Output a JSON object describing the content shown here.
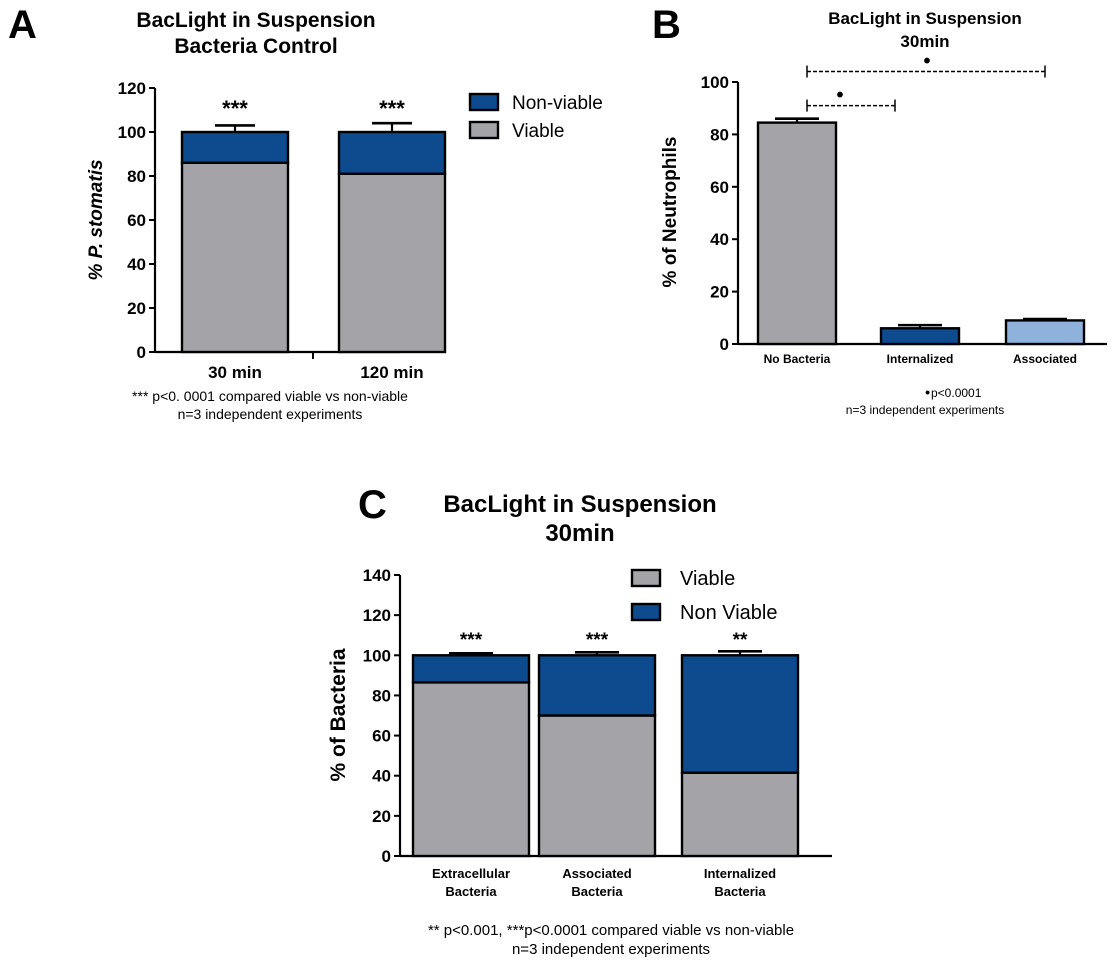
{
  "colors": {
    "viable": "#a4a3a8",
    "non_viable": "#0d4a8e",
    "internalized": "#0d4a8e",
    "associated": "#8fb2dd",
    "axis": "#000000"
  },
  "chart_data": [
    {
      "id": "A",
      "type": "bar",
      "stacked": true,
      "panel_label": "A",
      "title": [
        "BacLight in Suspension",
        "Bacteria Control"
      ],
      "ylabel": "% P. stomatis",
      "xlabel": "",
      "ylim": [
        0,
        120
      ],
      "yticks": [
        0,
        20,
        40,
        60,
        80,
        100,
        120
      ],
      "categories": [
        "30 min",
        "120 min"
      ],
      "series": [
        {
          "name": "Viable",
          "color_key": "viable",
          "values": [
            86,
            81
          ],
          "errors": [
            3,
            4
          ]
        },
        {
          "name": "Non-viable",
          "color_key": "non_viable",
          "values": [
            14,
            19
          ],
          "errors": [
            3,
            4
          ]
        }
      ],
      "significance": [
        "***",
        "***"
      ],
      "legend_order": [
        "Non-viable",
        "Viable"
      ],
      "legend_position": "top-right",
      "footnotes": [
        "*** p<0. 0001 compared viable vs non-viable",
        "n=3 independent experiments"
      ]
    },
    {
      "id": "B",
      "type": "bar",
      "stacked": false,
      "panel_label": "B",
      "title": [
        "BacLight in Suspension",
        "30min"
      ],
      "ylabel": "% of Neutrophils",
      "xlabel": "",
      "ylim": [
        0,
        100
      ],
      "yticks": [
        0,
        20,
        40,
        60,
        80,
        100
      ],
      "categories": [
        "No Bacteria",
        "Internalized",
        "Associated"
      ],
      "values": [
        84.5,
        6,
        9
      ],
      "errors": [
        1.5,
        1.2,
        0.5
      ],
      "bar_color_keys": [
        "viable",
        "internalized",
        "associated"
      ],
      "comparisons": [
        {
          "from": "No Bacteria",
          "to": "Internalized",
          "y": 91,
          "symbol": "•"
        },
        {
          "from": "No Bacteria",
          "to": "Associated",
          "y": 104,
          "symbol": "•"
        }
      ],
      "footnote_symbol": "•",
      "footnotes": [
        "p<0.0001",
        "n=3 independent experiments"
      ]
    },
    {
      "id": "C",
      "type": "bar",
      "stacked": true,
      "panel_label": "C",
      "title": [
        "BacLight in Suspension",
        "30min"
      ],
      "ylabel": "% of Bacteria",
      "xlabel": "",
      "ylim": [
        0,
        140
      ],
      "yticks": [
        0,
        20,
        40,
        60,
        80,
        100,
        120,
        140
      ],
      "categories": [
        [
          "Extracellular",
          "Bacteria"
        ],
        [
          "Associated",
          "Bacteria"
        ],
        [
          "Internalized",
          "Bacteria"
        ]
      ],
      "series": [
        {
          "name": "Viable",
          "color_key": "viable",
          "values": [
            86.5,
            70,
            41.5
          ],
          "errors": [
            1.5,
            1.5,
            2
          ]
        },
        {
          "name": "Non Viable",
          "color_key": "non_viable",
          "values": [
            13.5,
            30,
            58.5
          ],
          "errors": [
            1,
            1.5,
            2
          ]
        }
      ],
      "significance": [
        "***",
        "***",
        "**"
      ],
      "legend_order": [
        "Viable",
        "Non Viable"
      ],
      "legend_position": "top-right",
      "footnotes": [
        "** p<0.001, ***p<0.0001 compared viable vs non-viable",
        "n=3 independent experiments"
      ]
    }
  ]
}
